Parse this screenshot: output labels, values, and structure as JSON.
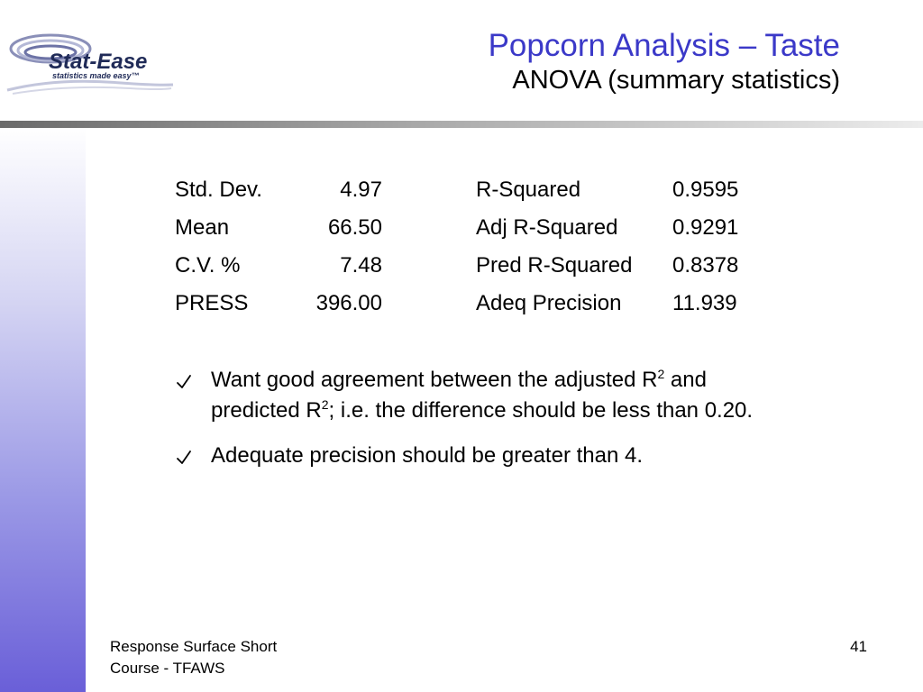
{
  "logo": {
    "text": "Stat-Ease",
    "tagline": "statistics made easy™",
    "colors": {
      "brand": "#1f2a57",
      "swoosh": "#8a8fb8"
    }
  },
  "title": {
    "main": "Popcorn Analysis – Taste",
    "sub": "ANOVA (summary statistics)"
  },
  "stats": {
    "rows": [
      {
        "label": "Std. Dev.",
        "value": "4.97",
        "label2": "R-Squared",
        "value2": "0.9595"
      },
      {
        "label": "Mean",
        "value": "66.50",
        "label2": "Adj R-Squared",
        "value2": "0.9291"
      },
      {
        "label": "C.V. %",
        "value": "7.48",
        "label2": "Pred R-Squared",
        "value2": "0.8378"
      },
      {
        "label": "PRESS",
        "value": "396.00",
        "label2": "Adeq Precision",
        "value2": "11.939"
      }
    ]
  },
  "bullets": {
    "b1": {
      "part1": "Want good agreement between the adjusted R",
      "sup1": "2",
      "part2": " and predicted R",
      "sup2": "2",
      "part3": "; i.e. the difference should be less than 0.20."
    },
    "b2": {
      "text": "Adequate precision should be greater than 4."
    }
  },
  "footer": {
    "line1": "Response Surface Short",
    "line2": "Course - TFAWS",
    "page_number": "41"
  },
  "colors": {
    "title": "#3b39c8",
    "sidebar_gradient_end": "#6a5fd8"
  }
}
